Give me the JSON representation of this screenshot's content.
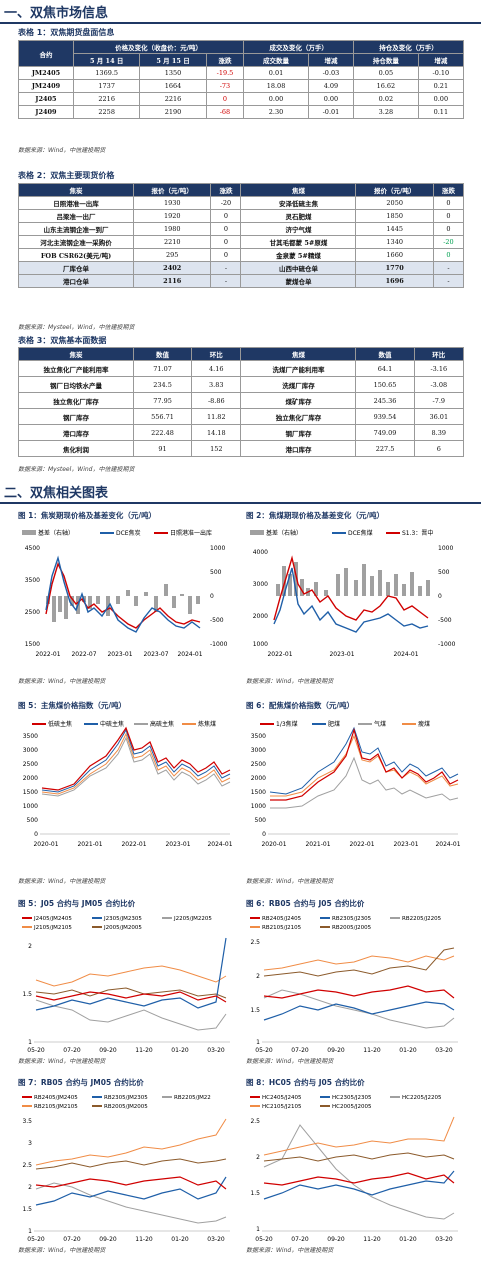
{
  "section1": {
    "title": "一、双焦市场信息"
  },
  "table1": {
    "caption": "表格 1：双焦期货盘面信息",
    "h": {
      "contract": "合约",
      "price_group": "价格及变化（收盘价：元/吨）",
      "vol_group": "成交及变化（万手）",
      "oi_group": "持仓及变化（万手）",
      "d1": "5 月 14 日",
      "d2": "5 月 15 日",
      "chg": "涨跌",
      "vol": "成交数量",
      "vchg": "增减",
      "oi": "持仓数量",
      "ochg": "增减"
    },
    "rows": [
      {
        "c": "JM2405",
        "p1": "1369.5",
        "p2": "1350",
        "chg": "-19.5",
        "vol": "0.01",
        "vchg": "-0.03",
        "oi": "0.05",
        "ochg": "-0.10"
      },
      {
        "c": "JM2409",
        "p1": "1737",
        "p2": "1664",
        "chg": "-73",
        "vol": "18.08",
        "vchg": "4.09",
        "oi": "16.62",
        "ochg": "0.21"
      },
      {
        "c": "J2405",
        "p1": "2216",
        "p2": "2216",
        "chg": "0",
        "vol": "0.00",
        "vchg": "0.00",
        "oi": "0.02",
        "ochg": "0.00"
      },
      {
        "c": "J2409",
        "p1": "2258",
        "p2": "2190",
        "chg": "-68",
        "vol": "2.30",
        "vchg": "-0.01",
        "oi": "3.28",
        "ochg": "0.11"
      }
    ],
    "source": "数据来源：Wind，中信建投期货"
  },
  "table2": {
    "caption": "表格 2：双焦主要现货价格",
    "h": {
      "coke": "焦炭",
      "price": "报价（元/吨）",
      "chg": "涨跌",
      "coal": "焦煤",
      "price2": "报价（元/吨）",
      "chg2": "涨跌"
    },
    "rows": [
      {
        "a": "日照港准一出库",
        "ap": "1930",
        "ac": "-20",
        "b": "安泽低硫主焦",
        "bp": "2050",
        "bc": "0"
      },
      {
        "a": "吕梁准一出厂",
        "ap": "1920",
        "ac": "0",
        "b": "灵石肥煤",
        "bp": "1850",
        "bc": "0"
      },
      {
        "a": "山东主流钢企准一到厂",
        "ap": "1980",
        "ac": "0",
        "b": "济宁气煤",
        "bp": "1445",
        "bc": "0"
      },
      {
        "a": "河北主流钢企准一采购价",
        "ap": "2210",
        "ac": "0",
        "b": "甘其毛都蒙 5#原煤",
        "bp": "1340",
        "bc": "-20"
      },
      {
        "a": "FOB CSR62(美元/吨)",
        "ap": "295",
        "ac": "0",
        "b": "金泉蒙 5#精煤",
        "bp": "1660",
        "bc": "0"
      },
      {
        "a": "厂库仓单",
        "ap": "2402",
        "ac": "-",
        "b": "山西中硫仓单",
        "bp": "1770",
        "bc": "-"
      },
      {
        "a": "港口仓单",
        "ap": "2116",
        "ac": "-",
        "b": "蒙煤仓单",
        "bp": "1696",
        "bc": "-"
      }
    ],
    "source": "数据来源：Mysteel，Wind，中信建投期货"
  },
  "table3": {
    "caption": "表格 3：双焦基本面数据",
    "h": {
      "coke": "焦炭",
      "val": "数值",
      "chg": "环比",
      "coal": "焦煤",
      "val2": "数值",
      "chg2": "环比"
    },
    "rows": [
      {
        "a": "独立焦化厂产能利用率",
        "av": "71.07",
        "ac": "4.16",
        "b": "洗煤厂产能利用率",
        "bv": "64.1",
        "bc": "-3.16"
      },
      {
        "a": "钢厂日均铁水产量",
        "av": "234.5",
        "ac": "3.83",
        "b": "洗煤厂库存",
        "bv": "150.65",
        "bc": "-3.08"
      },
      {
        "a": "独立焦化厂库存",
        "av": "77.95",
        "ac": "-8.86",
        "b": "煤矿库存",
        "bv": "245.36",
        "bc": "-7.9"
      },
      {
        "a": "钢厂库存",
        "av": "556.71",
        "ac": "11.82",
        "b": "独立焦化厂库存",
        "bv": "939.54",
        "bc": "36.01"
      },
      {
        "a": "港口库存",
        "av": "222.48",
        "ac": "14.18",
        "b": "钢厂库存",
        "bv": "749.09",
        "bc": "8.39"
      },
      {
        "a": "焦化利润",
        "av": "91",
        "ac": "152",
        "b": "港口库存",
        "bv": "227.5",
        "bc": "6"
      }
    ],
    "source": "数据来源：Mysteel，Wind，中信建投期货"
  },
  "section2": {
    "title": "二、双焦相关图表"
  },
  "figures": {
    "f1": {
      "caption": "图 1：焦炭期现价格及基差变化（元/吨）",
      "legend": [
        "基差（右轴）",
        "DCE焦炭",
        "日照港准一出库"
      ],
      "yl": [
        "4500",
        "3500",
        "2500",
        "1500"
      ],
      "yr": [
        "1000",
        "500",
        "0",
        "-500",
        "-1000"
      ],
      "x": [
        "2022-01",
        "2022-07",
        "2023-01",
        "2023-07",
        "2024-01"
      ],
      "source": "数据来源：Wind，中信建投期货"
    },
    "f2": {
      "caption": "图 2：焦煤期现价格及基差变化（元/吨）",
      "legend": [
        "基差（右轴）",
        "DCE焦煤",
        "S1.3：晋中"
      ],
      "yl": [
        "4000",
        "3000",
        "2000",
        "1000"
      ],
      "yr": [
        "1000",
        "500",
        "0",
        "-500",
        "-1000"
      ],
      "x": [
        "2022-01",
        "2023-01",
        "2024-01"
      ],
      "source": "数据来源：Wind，中信建投期货"
    },
    "f5": {
      "caption": "图 5：主焦煤价格指数（元/吨）",
      "legend": [
        "低硫主焦",
        "中硫主焦",
        "高硫主焦",
        "炼焦煤"
      ],
      "yl": [
        "3500",
        "3000",
        "2500",
        "2000",
        "1500",
        "1000",
        "500",
        "0"
      ],
      "x": [
        "2020-01",
        "2021-01",
        "2022-01",
        "2023-01",
        "2024-01"
      ],
      "source": "数据来源：Wind，中信建投期货"
    },
    "f6": {
      "caption": "图 6：配焦煤价格指数（元/吨）",
      "legend": [
        "1/3焦煤",
        "肥煤",
        "气煤",
        "瘦煤"
      ],
      "yl": [
        "3500",
        "3000",
        "2500",
        "2000",
        "1500",
        "1000",
        "500",
        "0"
      ],
      "x": [
        "2020-01",
        "2021-01",
        "2022-01",
        "2023-01",
        "2024-01"
      ],
      "source": "数据来源：Wind，中信建投期货"
    },
    "f5b": {
      "caption": "图 5：J05 合约与 JM05 合约比价",
      "legend": [
        "J2405/JM2405",
        "J2305/JM2305",
        "J2205/JM2205",
        "J2105/JM2105",
        "J2005/JM2005"
      ],
      "yl": [
        "2",
        "1.5",
        "1"
      ],
      "x": [
        "05-20",
        "07-20",
        "09-20",
        "11-20",
        "01-20",
        "03-20"
      ],
      "source": "数据来源：Wind，中信建投期货"
    },
    "f6b": {
      "caption": "图 6：RB05 合约与 J05 合约比价",
      "legend": [
        "RB2405/J2405",
        "RB2305/J2305",
        "RB2205/J2205",
        "RB2105/J2105",
        "RB2005/J2005"
      ],
      "yl": [
        "2.5",
        "2",
        "1.5",
        "1"
      ],
      "x": [
        "05-20",
        "07-20",
        "09-20",
        "11-20",
        "01-20",
        "03-20"
      ],
      "source": "数据来源：Wind，中信建投期货"
    },
    "f7": {
      "caption": "图 7：RB05 合约与 JM05 合约比价",
      "legend": [
        "RB2405/JM2405",
        "RB2305/JM2305",
        "RB2205/JM22",
        "RB2105/JM2105",
        "RB2005/JM2005"
      ],
      "yl": [
        "3.5",
        "3",
        "2.5",
        "2",
        "1.5",
        "1"
      ],
      "x": [
        "05-20",
        "07-20",
        "09-20",
        "11-20",
        "01-20",
        "03-20"
      ],
      "source": "数据来源：Wind，中信建投期货"
    },
    "f8": {
      "caption": "图 8：HC05 合约与 J05 合约比价",
      "legend": [
        "HC2405/J2405",
        "HC2305/J2305",
        "HC2205/J2205",
        "HC2105/J2105",
        "HC2005/J2005"
      ],
      "yl": [
        "2.5",
        "2",
        "1.5",
        "1"
      ],
      "x": [
        "05-20",
        "07-20",
        "09-20",
        "11-20",
        "01-20",
        "03-20"
      ],
      "source": "数据来源：Wind，中信建投期货"
    }
  },
  "colors": {
    "navy": "#1f3864",
    "red": "#d00000",
    "blue": "#1f5fa8",
    "gray": "#a0a0a0",
    "orange": "#f08c46"
  }
}
